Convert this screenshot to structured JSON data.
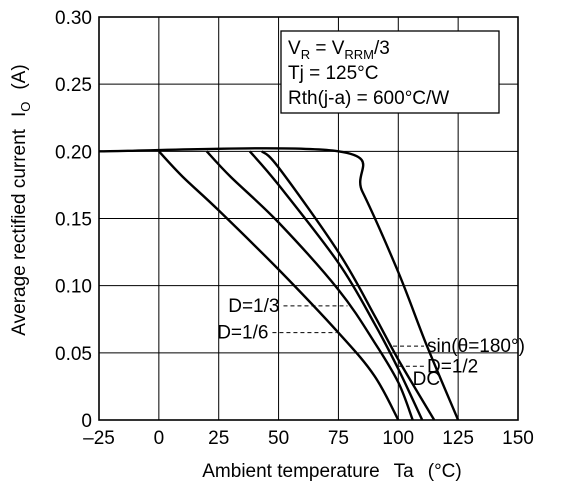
{
  "chart_data": {
    "type": "line",
    "xlabel_main": "Ambient temperature",
    "xlabel_symbol": "Ta",
    "xlabel_unit": "(°C)",
    "ylabel_main": "Average rectified current",
    "ylabel_sym": "I",
    "ylabel_sub": "O",
    "ylabel_unit": "(A)",
    "xlim": [
      -25,
      150
    ],
    "ylim": [
      0,
      0.3
    ],
    "x_ticks": [
      -25,
      0,
      25,
      50,
      75,
      100,
      125,
      150
    ],
    "x_tick_labels": [
      "–25",
      "0",
      "25",
      "50",
      "75",
      "100",
      "125",
      "150"
    ],
    "y_ticks": [
      0,
      0.05,
      0.1,
      0.15,
      0.2,
      0.25,
      0.3
    ],
    "y_tick_labels": [
      "0",
      "0.05",
      "0.10",
      "0.15",
      "0.20",
      "0.25",
      "0.30"
    ],
    "grid": true,
    "conditions": {
      "line1_main": "V",
      "line1_sub1": "R",
      "line1_mid": " = V",
      "line1_sub2": "RRM",
      "line1_end": "/3",
      "line2": "Tj = 125°C",
      "line3": "Rth(j-a) = 600°C/W"
    },
    "series": [
      {
        "name": "D=1/6",
        "points": [
          [
            0,
            0.2
          ],
          [
            10,
            0.181
          ],
          [
            25,
            0.156
          ],
          [
            50,
            0.112
          ],
          [
            75,
            0.065
          ],
          [
            90,
            0.033
          ],
          [
            100,
            0.0
          ]
        ]
      },
      {
        "name": "D=1/3",
        "points": [
          [
            20,
            0.2
          ],
          [
            30,
            0.181
          ],
          [
            50,
            0.147
          ],
          [
            75,
            0.097
          ],
          [
            90,
            0.058
          ],
          [
            100,
            0.028
          ],
          [
            106,
            0.0
          ]
        ]
      },
      {
        "name": "D=1/2",
        "points": [
          [
            38,
            0.2
          ],
          [
            50,
            0.175
          ],
          [
            75,
            0.117
          ],
          [
            90,
            0.072
          ],
          [
            100,
            0.038
          ],
          [
            110,
            0.0
          ]
        ]
      },
      {
        "name": "sin(θ=180°)",
        "points": [
          [
            43,
            0.2
          ],
          [
            50,
            0.188
          ],
          [
            75,
            0.125
          ],
          [
            90,
            0.078
          ],
          [
            100,
            0.045
          ],
          [
            115,
            0.0
          ]
        ]
      },
      {
        "name": "DC",
        "points": [
          [
            -25,
            0.2
          ],
          [
            75,
            0.2
          ],
          [
            85,
            0.17
          ],
          [
            100,
            0.11
          ],
          [
            112,
            0.055
          ],
          [
            125,
            0.0
          ]
        ]
      }
    ],
    "annotations": [
      {
        "text": "D=1/3",
        "series": "D=1/3",
        "at_y": 0.085,
        "side": "left"
      },
      {
        "text": "D=1/6",
        "series": "D=1/6",
        "at_y": 0.065,
        "side": "left"
      },
      {
        "text": "sin(θ=180°)",
        "series": "sin(θ=180°)",
        "at_y": 0.055,
        "side": "right"
      },
      {
        "text": "D=1/2",
        "series": "D=1/2",
        "at_y": 0.04,
        "side": "right"
      },
      {
        "text": "DC",
        "series": "DC",
        "at_y": 0.04,
        "side": "right"
      }
    ]
  }
}
